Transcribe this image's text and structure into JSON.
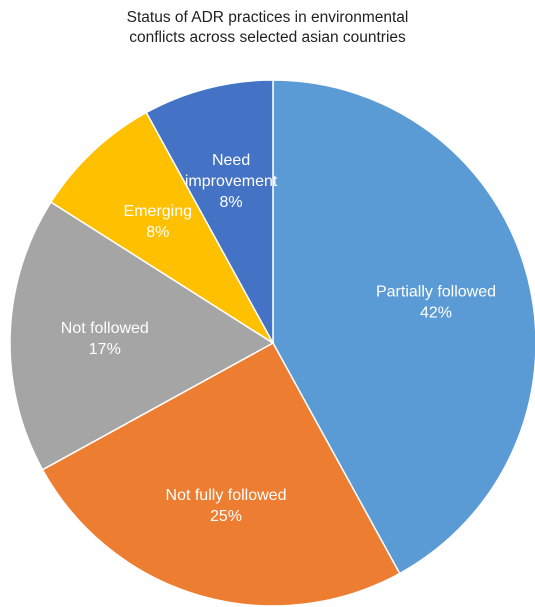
{
  "chart_data": {
    "type": "pie",
    "title_lines": [
      "Status of ADR practices in environmental",
      "conflicts across selected asian countries"
    ],
    "start_angle_deg": 0,
    "direction": "clockwise",
    "slices": [
      {
        "label_lines": [
          "Partially followed"
        ],
        "value": 42,
        "value_label": "42%",
        "color": "#5B9BD5"
      },
      {
        "label_lines": [
          "Not fully followed"
        ],
        "value": 25,
        "value_label": "25%",
        "color": "#ED7D31"
      },
      {
        "label_lines": [
          "Not followed"
        ],
        "value": 17,
        "value_label": "17%",
        "color": "#A5A5A5"
      },
      {
        "label_lines": [
          "Emerging"
        ],
        "value": 8,
        "value_label": "8%",
        "color": "#FFC000"
      },
      {
        "label_lines": [
          "Need",
          "improvement"
        ],
        "value": 8,
        "value_label": "8%",
        "color": "#4472C4"
      }
    ]
  }
}
